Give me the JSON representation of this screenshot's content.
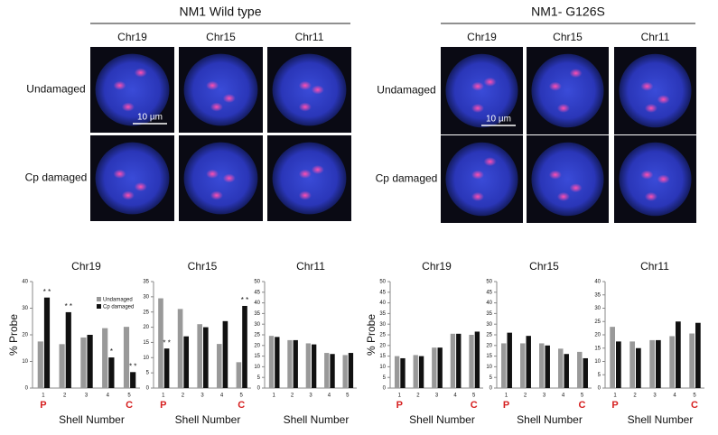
{
  "panels": [
    {
      "title": "NM1 Wild type",
      "columns": [
        "Chr19",
        "Chr15",
        "Chr11"
      ],
      "rows": [
        "Undamaged",
        "Cp damaged"
      ],
      "scale_bar": "10 µm"
    },
    {
      "title": "NM1- G126S",
      "columns": [
        "Chr19",
        "Chr15",
        "Chr11"
      ],
      "rows": [
        "Undamaged",
        "Cp damaged"
      ],
      "scale_bar": "10 µm"
    }
  ],
  "chart_data": [
    {
      "type": "bar",
      "title": "Chr19",
      "categories": [
        "1",
        "2",
        "3",
        "4",
        "5"
      ],
      "sublabels": [
        "P",
        null,
        null,
        null,
        "C"
      ],
      "x_label": "Shell Number",
      "y_label": "% Probe",
      "ylim": [
        0,
        40
      ],
      "yticks": [
        0,
        10,
        20,
        30,
        40
      ],
      "legend": true,
      "series": [
        {
          "name": "Undamaged",
          "color": "#999999",
          "values": [
            17.5,
            16.5,
            19,
            22.5,
            23
          ]
        },
        {
          "name": "Cp damaged",
          "color": "#111111",
          "values": [
            34,
            28.5,
            20,
            11.5,
            6
          ],
          "stars": [
            "* *",
            "* *",
            null,
            "*",
            "* *"
          ]
        }
      ]
    },
    {
      "type": "bar",
      "title": "Chr15",
      "categories": [
        "1",
        "2",
        "3",
        "4",
        "5"
      ],
      "sublabels": [
        "P",
        null,
        null,
        null,
        "C"
      ],
      "x_label": "Shell Number",
      "ylim": [
        0,
        35
      ],
      "yticks": [
        0,
        5,
        10,
        15,
        20,
        25,
        30,
        35
      ],
      "series": [
        {
          "color": "#999999",
          "values": [
            29.5,
            26,
            21,
            14.5,
            8.5
          ]
        },
        {
          "color": "#111111",
          "values": [
            13,
            17,
            20,
            22,
            27
          ],
          "stars": [
            "* *",
            null,
            null,
            null,
            "* *"
          ]
        }
      ]
    },
    {
      "type": "bar",
      "title": "Chr11",
      "categories": [
        "1",
        "2",
        "3",
        "4",
        "5"
      ],
      "x_label": "Shell Number",
      "ylim": [
        0,
        50
      ],
      "yticks": [
        0,
        5,
        10,
        15,
        20,
        25,
        30,
        35,
        40,
        45,
        50
      ],
      "series": [
        {
          "color": "#999999",
          "values": [
            24.5,
            22.5,
            21,
            16.5,
            15.5
          ]
        },
        {
          "color": "#111111",
          "values": [
            24,
            22.5,
            20.5,
            16,
            16.5
          ]
        }
      ]
    },
    {
      "type": "bar",
      "title": "Chr19",
      "categories": [
        "1",
        "2",
        "3",
        "4",
        "5"
      ],
      "sublabels": [
        "P",
        null,
        null,
        null,
        "C"
      ],
      "x_label": "Shell Number",
      "y_label": "% Probe",
      "ylim": [
        0,
        50
      ],
      "yticks": [
        0,
        5,
        10,
        15,
        20,
        25,
        30,
        35,
        40,
        45,
        50
      ],
      "series": [
        {
          "color": "#999999",
          "values": [
            15,
            15.5,
            19,
            25.5,
            25
          ]
        },
        {
          "color": "#111111",
          "values": [
            14,
            15,
            19,
            25.5,
            26.5
          ]
        }
      ]
    },
    {
      "type": "bar",
      "title": "Chr15",
      "categories": [
        "1",
        "2",
        "3",
        "4",
        "5"
      ],
      "sublabels": [
        "P",
        null,
        null,
        null,
        "C"
      ],
      "x_label": "Shell Number",
      "ylim": [
        0,
        50
      ],
      "yticks": [
        0,
        5,
        10,
        15,
        20,
        25,
        30,
        35,
        40,
        45,
        50
      ],
      "series": [
        {
          "color": "#999999",
          "values": [
            21,
            21,
            21,
            18.5,
            17
          ]
        },
        {
          "color": "#111111",
          "values": [
            26,
            24.5,
            20,
            16,
            14
          ]
        }
      ]
    },
    {
      "type": "bar",
      "title": "Chr11",
      "categories": [
        "1",
        "2",
        "3",
        "4",
        "5"
      ],
      "sublabels": [
        "P",
        null,
        null,
        null,
        "C"
      ],
      "x_label": "Shell Number",
      "ylim": [
        0,
        40
      ],
      "yticks": [
        0,
        5,
        10,
        15,
        20,
        25,
        30,
        35,
        40
      ],
      "series": [
        {
          "color": "#999999",
          "values": [
            23,
            17.5,
            18,
            19.5,
            20.5
          ]
        },
        {
          "color": "#111111",
          "values": [
            17.5,
            15,
            18,
            25,
            24.5
          ]
        }
      ]
    }
  ]
}
